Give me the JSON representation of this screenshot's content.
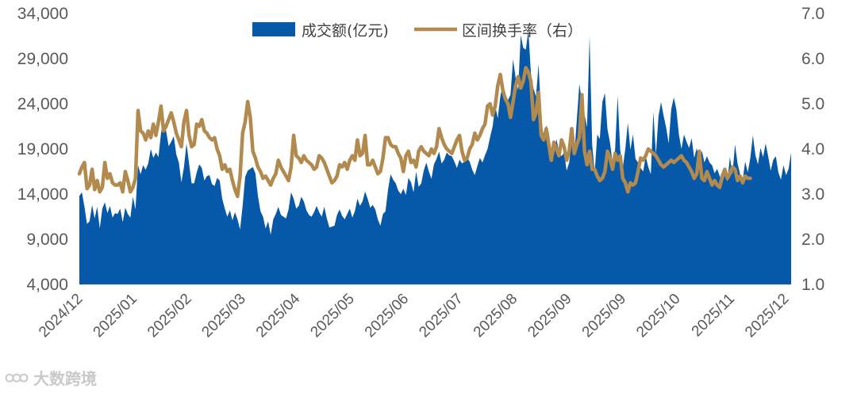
{
  "chart_data": {
    "type": "area",
    "legend": {
      "position": "top-center",
      "volume_label": "成交额(亿元)",
      "turnover_label": "区间换手率（右）"
    },
    "colors": {
      "volume": "#0659A8",
      "turnover": "#B38A4E",
      "tick_text": "#595959"
    },
    "y_left": {
      "min": 4000,
      "max": 34000,
      "ticks": [
        "4,000",
        "9,000",
        "14,000",
        "19,000",
        "24,000",
        "29,000",
        "34,000"
      ]
    },
    "y_right": {
      "min": 1.0,
      "max": 7.0,
      "ticks": [
        "1.0",
        "2.0",
        "3.0",
        "4.0",
        "5.0",
        "6.0",
        "7.0"
      ]
    },
    "x_ticks": [
      "2024/12",
      "2025/01",
      "2025/02",
      "2025/03",
      "2025/04",
      "2025/05",
      "2025/06",
      "2025/07",
      "2025/08",
      "2025/09",
      "2025/09",
      "2025/10",
      "2025/11",
      "2025/12"
    ],
    "grid": false,
    "series": [
      {
        "name": "成交额(亿元)",
        "kind": "area",
        "axis": "left",
        "values": [
          13800,
          14200,
          12600,
          10700,
          11000,
          12800,
          11300,
          12600,
          10200,
          12400,
          13100,
          11900,
          12700,
          11400,
          11900,
          11800,
          12400,
          10900,
          12500,
          11800,
          11400,
          13700,
          12300,
          17200,
          16200,
          17200,
          16700,
          17400,
          19000,
          18000,
          18600,
          18100,
          20700,
          22400,
          21000,
          19300,
          19800,
          20400,
          18400,
          17500,
          15300,
          17000,
          19600,
          17400,
          15200,
          15200,
          16400,
          17300,
          16900,
          15500,
          16000,
          16100,
          15100,
          14900,
          15800,
          15500,
          13500,
          12400,
          11500,
          12200,
          11100,
          12000,
          11200,
          10100,
          12700,
          15900,
          16600,
          16800,
          17000,
          16300,
          13800,
          12100,
          11500,
          10200,
          11000,
          9500,
          11200,
          11800,
          12600,
          11700,
          11500,
          11300,
          12300,
          14200,
          13500,
          12400,
          12700,
          13700,
          13200,
          12200,
          11700,
          11500,
          12000,
          12700,
          12000,
          11500,
          12600,
          11300,
          10300,
          10400,
          10500,
          11700,
          12300,
          11600,
          11200,
          11800,
          12400,
          11400,
          12100,
          13500,
          12700,
          13200,
          14300,
          13500,
          12500,
          12800,
          12300,
          11200,
          10500,
          11800,
          12100,
          14500,
          16200,
          15600,
          15200,
          14400,
          14000,
          14600,
          13900,
          15800,
          15300,
          14200,
          16500,
          14800,
          15200,
          16600,
          17500,
          16500,
          15700,
          17300,
          17900,
          18700,
          17400,
          17800,
          18600,
          18300,
          18200,
          17600,
          16900,
          17800,
          17400,
          17600,
          18000,
          17600,
          16700,
          16100,
          17100,
          18000,
          17500,
          18300,
          19000,
          20300,
          21500,
          23800,
          22400,
          24800,
          26200,
          25100,
          24400,
          25000,
          28900,
          26900,
          25500,
          31600,
          30200,
          30000,
          32100,
          27400,
          25700,
          24800,
          28400,
          22700,
          20200,
          21600,
          20800,
          18800,
          18300,
          20100,
          18700,
          18200,
          18600,
          16600,
          17500,
          20100,
          18200,
          22300,
          26200,
          24200,
          22800,
          21400,
          31500,
          19500,
          16400,
          20600,
          20100,
          24200,
          25200,
          21200,
          19700,
          17500,
          18900,
          24900,
          18900,
          16900,
          19000,
          21900,
          18900,
          20600,
          17900,
          17500,
          16900,
          16500,
          18200,
          17000,
          16200,
          23100,
          18400,
          22600,
          24200,
          22700,
          21400,
          19600,
          23400,
          24700,
          23400,
          20600,
          19000,
          20600,
          19800,
          19100,
          20200,
          18000,
          19100,
          17700,
          18800,
          17500,
          18200,
          17500,
          17200,
          16300,
          16800,
          16000,
          15200,
          16200,
          15400,
          18100,
          16200,
          19500,
          17400,
          16200,
          15600,
          17600,
          16400,
          18000,
          20500,
          18300,
          17300,
          19100,
          18100,
          19600,
          18200,
          16600,
          17800,
          18200,
          16400,
          15600,
          17200,
          16100,
          16800,
          18600
        ]
      },
      {
        "name": "区间换手率（右）",
        "kind": "line",
        "axis": "right",
        "values": [
          3.45,
          3.6,
          3.7,
          3.12,
          3.2,
          3.55,
          3.1,
          3.3,
          3.05,
          3.15,
          3.7,
          3.35,
          3.45,
          3.25,
          3.2,
          3.2,
          3.25,
          3.05,
          3.5,
          3.3,
          3.05,
          3.15,
          3.35,
          4.85,
          4.4,
          4.35,
          4.2,
          4.4,
          4.25,
          4.55,
          4.3,
          4.6,
          4.95,
          4.4,
          4.5,
          4.65,
          4.8,
          4.6,
          4.35,
          4.2,
          4.05,
          4.6,
          4.85,
          4.3,
          4.05,
          4.1,
          4.55,
          4.5,
          4.65,
          4.4,
          4.35,
          4.25,
          4.2,
          4.25,
          4.0,
          3.85,
          3.55,
          3.65,
          3.5,
          3.55,
          3.3,
          3.1,
          2.95,
          3.4,
          4.35,
          4.6,
          5.05,
          4.7,
          3.95,
          3.8,
          3.6,
          3.5,
          3.35,
          3.4,
          3.3,
          3.2,
          3.35,
          3.45,
          3.75,
          3.6,
          3.5,
          3.4,
          3.3,
          3.6,
          4.3,
          3.85,
          3.8,
          3.7,
          3.85,
          3.75,
          3.7,
          3.65,
          3.55,
          3.6,
          3.85,
          3.8,
          3.7,
          3.55,
          3.4,
          3.25,
          3.3,
          3.4,
          3.65,
          3.6,
          3.7,
          3.55,
          3.75,
          3.85,
          3.75,
          4.2,
          3.85,
          3.9,
          4.3,
          3.65,
          3.65,
          3.75,
          3.6,
          3.45,
          3.5,
          3.8,
          4.25,
          4.25,
          4.1,
          4.05,
          4.05,
          3.9,
          3.8,
          3.5,
          3.85,
          3.95,
          3.7,
          3.75,
          3.6,
          3.95,
          4.05,
          3.95,
          3.9,
          3.85,
          4.0,
          3.9,
          4.05,
          4.45,
          4.25,
          4.1,
          4.0,
          3.95,
          3.9,
          4.05,
          4.2,
          4.3,
          3.95,
          3.75,
          3.8,
          4.0,
          4.1,
          4.35,
          4.2,
          4.3,
          4.45,
          4.55,
          4.95,
          5.0,
          4.75,
          4.95,
          5.4,
          5.65,
          5.3,
          5.1,
          5.0,
          4.7,
          5.05,
          5.4,
          5.6,
          5.35,
          5.5,
          5.8,
          5.7,
          5.5,
          4.65,
          4.8,
          5.25,
          4.3,
          4.2,
          4.45,
          4.1,
          3.75,
          4.15,
          4.0,
          3.85,
          4.2,
          4.05,
          3.75,
          3.95,
          4.45,
          3.9,
          4.1,
          4.25,
          5.2,
          3.95,
          3.65,
          3.95,
          3.55,
          3.55,
          3.4,
          3.3,
          3.35,
          3.5,
          3.95,
          3.8,
          3.55,
          3.9,
          3.75,
          3.85,
          3.35,
          3.25,
          3.05,
          3.25,
          3.2,
          3.25,
          3.5,
          3.8,
          3.75,
          3.85,
          4.0,
          3.95,
          3.9,
          3.85,
          3.75,
          3.65,
          3.6,
          3.65,
          3.7,
          3.75,
          3.7,
          3.75,
          3.8,
          3.85,
          3.75,
          3.7,
          3.6,
          3.5,
          3.35,
          3.45,
          3.95,
          3.35,
          3.3,
          3.5,
          3.35,
          3.2,
          3.3,
          3.2,
          3.15,
          3.4,
          3.55,
          3.35,
          3.45,
          3.6,
          3.55,
          3.3,
          3.4,
          3.25,
          3.4,
          3.35,
          3.35
        ]
      }
    ]
  },
  "watermark": {
    "text": "大数跨境"
  }
}
